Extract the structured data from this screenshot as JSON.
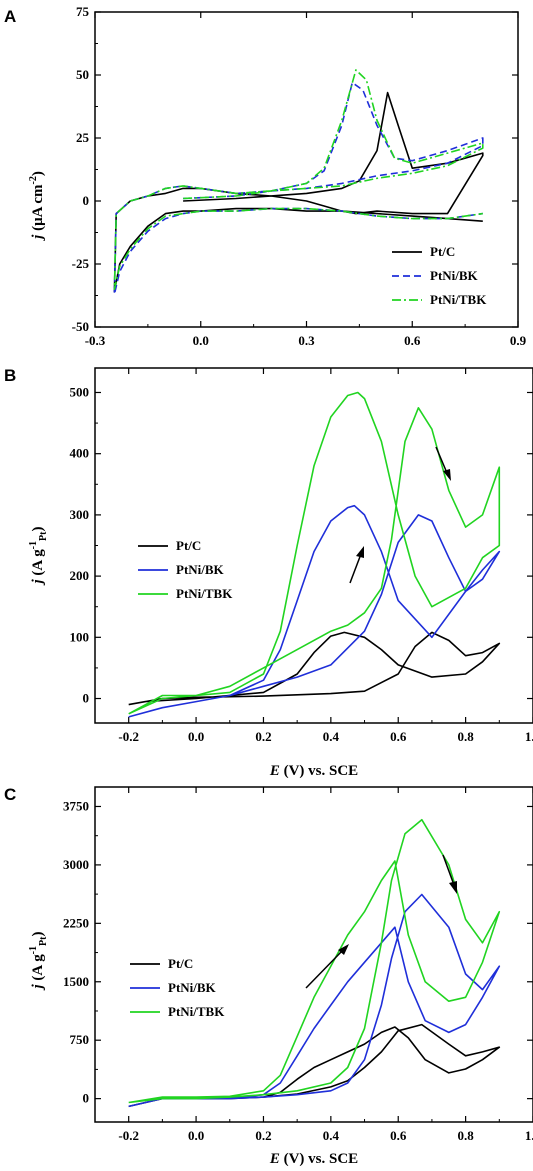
{
  "chart_data": [
    {
      "panel": "A",
      "type": "line",
      "ylabel_main": "j",
      "ylabel_unit": "μA cm",
      "ylabel_sup": "-2",
      "xlabel": "",
      "xlim": [
        -0.3,
        0.9
      ],
      "ylim": [
        -50,
        75
      ],
      "xticks": [
        -0.3,
        0.0,
        0.3,
        0.6,
        0.9
      ],
      "xtick_labels": [
        "-0.3",
        "0.0",
        "0.3",
        "0.6",
        "0.9"
      ],
      "yticks": [
        -50,
        -25,
        0,
        25,
        50,
        75
      ],
      "ytick_labels": [
        "-50",
        "-25",
        "0",
        "25",
        "50",
        "75"
      ],
      "legend_position": "bottom-right",
      "series": [
        {
          "name": "Pt/C",
          "color": "#000000",
          "dash": "solid",
          "x": [
            -0.05,
            0.1,
            0.3,
            0.4,
            0.45,
            0.5,
            0.53,
            0.56,
            0.6,
            0.7,
            0.8,
            0.8,
            0.7,
            0.6,
            0.5,
            0.44,
            0.4,
            0.35,
            0.3,
            0.2,
            0.1,
            0.0,
            -0.05,
            -0.1,
            -0.15,
            -0.2,
            -0.24,
            -0.245,
            -0.23,
            -0.2,
            -0.15,
            -0.1,
            -0.05,
            0.0,
            0.1,
            0.2,
            0.3,
            0.4,
            0.5,
            0.6,
            0.7,
            0.8
          ],
          "y": [
            0,
            1,
            3,
            5,
            8,
            20,
            43,
            30,
            13,
            15,
            19,
            18,
            -5,
            -5,
            -4,
            -5,
            -4,
            -2,
            0,
            2,
            3,
            5,
            5,
            3,
            2,
            0,
            -5,
            -36,
            -25,
            -18,
            -10,
            -5,
            -4,
            -4,
            -3,
            -3,
            -4,
            -4,
            -5,
            -6,
            -7,
            -8
          ]
        },
        {
          "name": "PtNi/BK",
          "color": "#1f2fd9",
          "dash": "dashed",
          "x": [
            -0.05,
            0.1,
            0.2,
            0.3,
            0.35,
            0.4,
            0.43,
            0.46,
            0.5,
            0.55,
            0.6,
            0.7,
            0.8,
            0.8,
            0.7,
            0.6,
            0.5,
            0.4,
            0.3,
            0.2,
            0.1,
            0.0,
            -0.05,
            -0.1,
            -0.15,
            -0.2,
            -0.24,
            -0.245,
            -0.23,
            -0.2,
            -0.15,
            -0.1,
            -0.05,
            0.0,
            0.1,
            0.2,
            0.3,
            0.4,
            0.5,
            0.6,
            0.7,
            0.8
          ],
          "y": [
            1,
            2,
            4,
            7,
            12,
            30,
            47,
            44,
            30,
            17,
            16,
            20,
            25,
            22,
            15,
            12,
            10,
            7,
            5,
            4,
            3,
            5,
            6,
            5,
            2,
            0,
            -5,
            -37,
            -28,
            -20,
            -12,
            -7,
            -5,
            -4,
            -4,
            -3,
            -3,
            -4,
            -6,
            -7,
            -7,
            -5
          ]
        },
        {
          "name": "PtNi/TBK",
          "color": "#21d421",
          "dash": "dashdot",
          "x": [
            -0.05,
            0.1,
            0.2,
            0.3,
            0.35,
            0.4,
            0.44,
            0.47,
            0.5,
            0.55,
            0.6,
            0.7,
            0.8,
            0.8,
            0.7,
            0.6,
            0.5,
            0.4,
            0.3,
            0.2,
            0.1,
            0.0,
            -0.05,
            -0.1,
            -0.15,
            -0.2,
            -0.24,
            -0.245,
            -0.23,
            -0.2,
            -0.15,
            -0.1,
            -0.05,
            0.0,
            0.1,
            0.2,
            0.3,
            0.4,
            0.5,
            0.6,
            0.7,
            0.8
          ],
          "y": [
            1,
            2,
            4,
            7,
            13,
            32,
            52,
            48,
            32,
            17,
            15,
            19,
            23,
            21,
            14,
            11,
            9,
            6,
            5,
            4,
            3,
            5,
            6,
            5,
            2,
            0,
            -5,
            -35,
            -26,
            -19,
            -11,
            -6,
            -5,
            -4,
            -4,
            -3,
            -3,
            -4,
            -6,
            -7,
            -7,
            -5
          ]
        }
      ]
    },
    {
      "panel": "B",
      "type": "line",
      "ylabel_main": "j",
      "ylabel_unit": "A g",
      "ylabel_sup": "-1",
      "ylabel_sub": "Pt",
      "xlabel_main": "E",
      "xlabel_rest": "(V) vs. SCE",
      "xlim": [
        -0.3,
        1.0
      ],
      "ylim": [
        -40,
        540
      ],
      "xticks": [
        -0.2,
        0.0,
        0.2,
        0.4,
        0.6,
        0.8,
        1.0
      ],
      "xtick_labels": [
        "-0.2",
        "0.0",
        "0.2",
        "0.4",
        "0.6",
        "0.8",
        "1.0"
      ],
      "yticks": [
        0,
        100,
        200,
        300,
        400,
        500
      ],
      "ytick_labels": [
        "0",
        "100",
        "200",
        "300",
        "400",
        "500"
      ],
      "legend_position": "middle-left",
      "series": [
        {
          "name": "Pt/C",
          "color": "#000000",
          "x": [
            -0.2,
            -0.15,
            0.0,
            0.2,
            0.3,
            0.35,
            0.4,
            0.44,
            0.5,
            0.55,
            0.6,
            0.7,
            0.8,
            0.85,
            0.9,
            0.9,
            0.85,
            0.8,
            0.75,
            0.7,
            0.65,
            0.6,
            0.5,
            0.4,
            0.3,
            0.2,
            0.1,
            0.0,
            -0.1,
            -0.2
          ],
          "y": [
            -10,
            -5,
            0,
            10,
            40,
            75,
            102,
            108,
            100,
            80,
            55,
            35,
            40,
            60,
            90,
            90,
            75,
            70,
            95,
            108,
            85,
            40,
            12,
            8,
            6,
            4,
            3,
            2,
            0,
            -10
          ]
        },
        {
          "name": "PtNi/BK",
          "color": "#1f2fd9",
          "x": [
            -0.2,
            -0.1,
            0.0,
            0.1,
            0.2,
            0.25,
            0.3,
            0.35,
            0.4,
            0.45,
            0.47,
            0.5,
            0.55,
            0.6,
            0.7,
            0.8,
            0.85,
            0.9,
            0.9,
            0.85,
            0.8,
            0.75,
            0.7,
            0.66,
            0.6,
            0.55,
            0.5,
            0.4,
            0.3,
            0.2,
            0.1,
            0.0,
            -0.1,
            -0.2
          ],
          "y": [
            -30,
            -15,
            -5,
            5,
            30,
            80,
            160,
            240,
            290,
            312,
            315,
            300,
            240,
            160,
            100,
            175,
            195,
            240,
            240,
            210,
            175,
            230,
            290,
            300,
            255,
            170,
            110,
            55,
            35,
            20,
            5,
            -5,
            -15,
            -30
          ]
        },
        {
          "name": "PtNi/TBK",
          "color": "#21d421",
          "x": [
            -0.2,
            -0.1,
            0.0,
            0.1,
            0.2,
            0.25,
            0.3,
            0.35,
            0.4,
            0.45,
            0.48,
            0.5,
            0.55,
            0.6,
            0.65,
            0.7,
            0.8,
            0.85,
            0.9,
            0.9,
            0.85,
            0.8,
            0.75,
            0.7,
            0.66,
            0.62,
            0.58,
            0.55,
            0.5,
            0.45,
            0.4,
            0.3,
            0.2,
            0.1,
            0.0,
            -0.1,
            -0.2
          ],
          "y": [
            -25,
            5,
            5,
            10,
            40,
            110,
            250,
            380,
            460,
            495,
            500,
            490,
            420,
            300,
            200,
            150,
            180,
            230,
            250,
            378,
            300,
            280,
            340,
            440,
            475,
            420,
            260,
            180,
            140,
            120,
            110,
            80,
            50,
            20,
            5,
            0,
            -25
          ]
        }
      ]
    },
    {
      "panel": "C",
      "type": "line",
      "ylabel_main": "j",
      "ylabel_unit": "A g",
      "ylabel_sup": "-1",
      "ylabel_sub": "Pt",
      "xlabel_main": "E",
      "xlabel_rest": "(V) vs. SCE",
      "xlim": [
        -0.3,
        1.0
      ],
      "ylim": [
        -300,
        4000
      ],
      "xticks": [
        -0.2,
        0.0,
        0.2,
        0.4,
        0.6,
        0.8,
        1.0
      ],
      "xtick_labels": [
        "-0.2",
        "0.0",
        "0.2",
        "0.4",
        "0.6",
        "0.8",
        "1.0"
      ],
      "yticks": [
        0,
        750,
        1500,
        2250,
        3000,
        3750
      ],
      "ytick_labels": [
        "0",
        "750",
        "1500",
        "2250",
        "3000",
        "3750"
      ],
      "legend_position": "middle-left",
      "series": [
        {
          "name": "Pt/C",
          "color": "#000000",
          "x": [
            -0.2,
            -0.1,
            0.0,
            0.1,
            0.2,
            0.25,
            0.3,
            0.35,
            0.4,
            0.45,
            0.5,
            0.55,
            0.59,
            0.63,
            0.68,
            0.75,
            0.8,
            0.85,
            0.9,
            0.9,
            0.85,
            0.8,
            0.75,
            0.67,
            0.6,
            0.55,
            0.5,
            0.45,
            0.4,
            0.3,
            0.2,
            0.1,
            0.0,
            -0.1,
            -0.2
          ],
          "y": [
            -100,
            0,
            0,
            0,
            20,
            80,
            250,
            400,
            500,
            600,
            700,
            850,
            920,
            780,
            500,
            330,
            380,
            500,
            660,
            660,
            600,
            550,
            700,
            950,
            870,
            600,
            400,
            230,
            150,
            60,
            20,
            0,
            0,
            0,
            -100
          ]
        },
        {
          "name": "PtNi/BK",
          "color": "#1f2fd9",
          "x": [
            -0.2,
            -0.1,
            0.0,
            0.1,
            0.2,
            0.25,
            0.3,
            0.35,
            0.4,
            0.45,
            0.5,
            0.55,
            0.59,
            0.63,
            0.68,
            0.75,
            0.8,
            0.85,
            0.9,
            0.9,
            0.85,
            0.8,
            0.75,
            0.67,
            0.62,
            0.58,
            0.55,
            0.5,
            0.45,
            0.4,
            0.3,
            0.2,
            0.1,
            0.0,
            -0.1,
            -0.2
          ],
          "y": [
            -100,
            0,
            0,
            0,
            50,
            200,
            550,
            900,
            1200,
            1500,
            1750,
            2000,
            2200,
            1500,
            1000,
            850,
            950,
            1300,
            1700,
            1700,
            1400,
            1600,
            2200,
            2620,
            2400,
            1800,
            1200,
            500,
            200,
            100,
            50,
            20,
            0,
            0,
            0,
            -100
          ]
        },
        {
          "name": "PtNi/TBK",
          "color": "#21d421",
          "x": [
            -0.2,
            -0.1,
            0.0,
            0.1,
            0.2,
            0.25,
            0.3,
            0.35,
            0.4,
            0.45,
            0.5,
            0.55,
            0.59,
            0.63,
            0.68,
            0.75,
            0.8,
            0.85,
            0.9,
            0.9,
            0.85,
            0.8,
            0.75,
            0.67,
            0.62,
            0.58,
            0.55,
            0.5,
            0.45,
            0.4,
            0.3,
            0.2,
            0.1,
            0.0,
            -0.1,
            -0.2
          ],
          "y": [
            -50,
            20,
            20,
            30,
            100,
            300,
            800,
            1300,
            1700,
            2100,
            2400,
            2800,
            3050,
            2100,
            1500,
            1250,
            1300,
            1750,
            2400,
            2400,
            2000,
            2300,
            3000,
            3580,
            3400,
            2800,
            2000,
            900,
            400,
            200,
            100,
            50,
            20,
            0,
            0,
            -50
          ]
        }
      ]
    }
  ]
}
